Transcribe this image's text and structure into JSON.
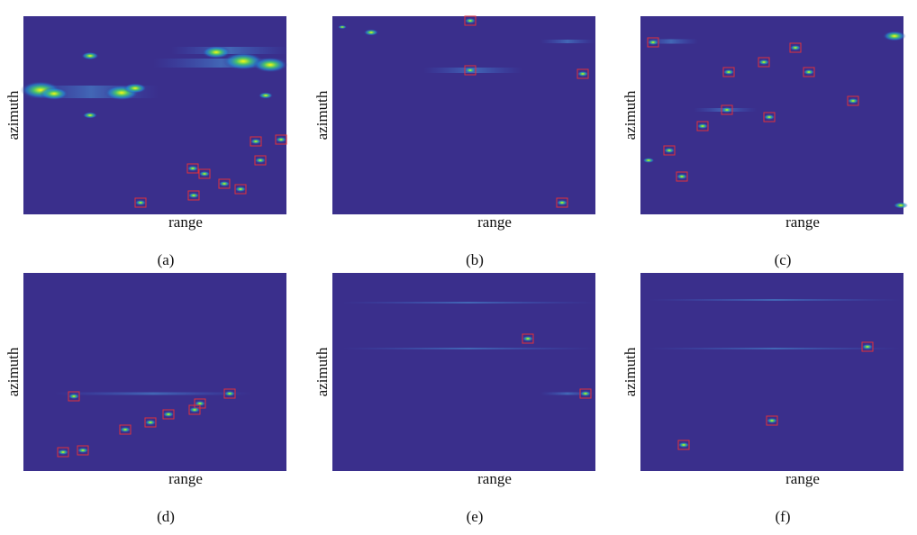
{
  "panels": [
    {
      "ylabel": "azimuth",
      "xlabel": "range",
      "caption": "(a)"
    },
    {
      "ylabel": "azimuth",
      "xlabel": "range",
      "caption": "(b)"
    },
    {
      "ylabel": "azimuth",
      "xlabel": "range",
      "caption": "(c)"
    },
    {
      "ylabel": "azimuth",
      "xlabel": "range",
      "caption": "(d)"
    },
    {
      "ylabel": "azimuth",
      "xlabel": "range",
      "caption": "(e)"
    },
    {
      "ylabel": "azimuth",
      "xlabel": "range",
      "caption": "(f)"
    }
  ]
}
